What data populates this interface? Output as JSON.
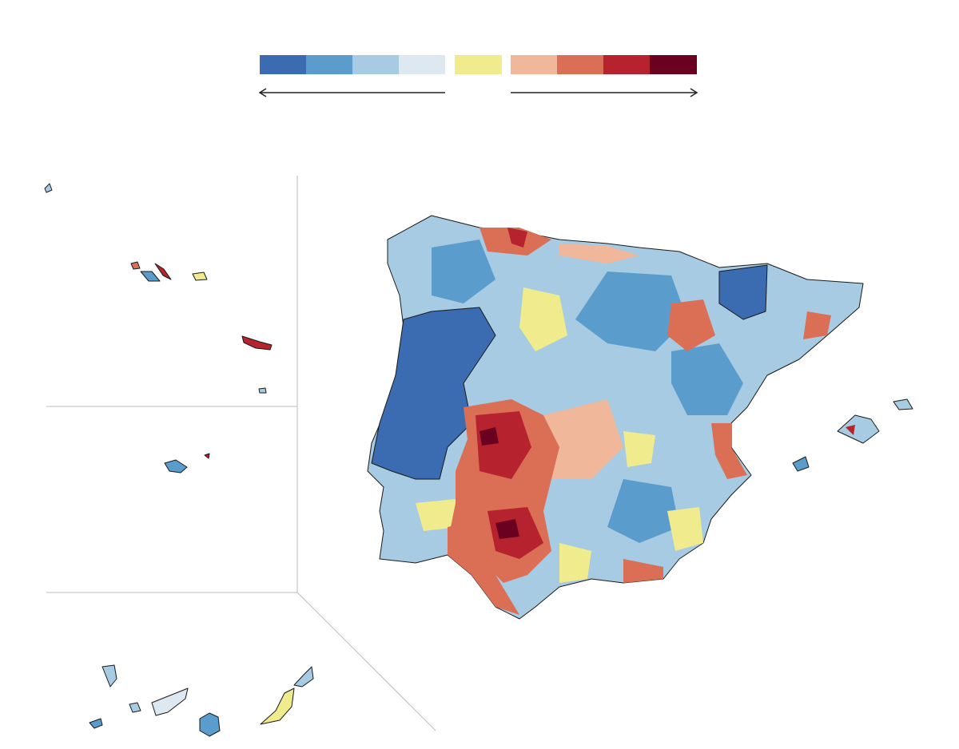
{
  "legend": {
    "colors": [
      "#3b6bb0",
      "#5a9ccc",
      "#a6cbe2",
      "#dde8f0",
      "#f0ec8e",
      "#f0b79a",
      "#db6f55",
      "#b6222e",
      "#6b0120"
    ]
  }
}
